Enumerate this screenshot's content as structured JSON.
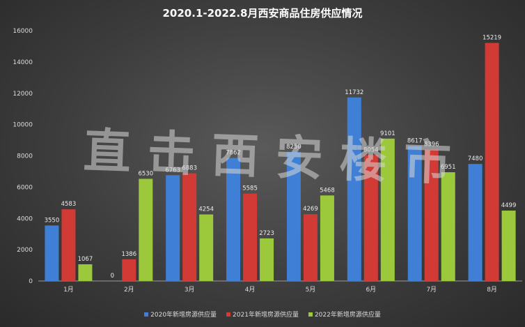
{
  "colors": {
    "s2020": "#3f7fd6",
    "s2021": "#d23a36",
    "s2022": "#9bc93b"
  },
  "watermark": "直击西安楼市",
  "chart_data": {
    "type": "bar",
    "title": "2020.1-2022.8月西安商品住房供应情况",
    "categories": [
      "1月",
      "2月",
      "3月",
      "4月",
      "5月",
      "6月",
      "7月",
      "8月"
    ],
    "series": [
      {
        "name": "2020年新增房源供应量",
        "values": [
          3550,
          0,
          6763,
          7862,
          8250,
          11732,
          8617,
          7480
        ]
      },
      {
        "name": "2021年新增房源供应量",
        "values": [
          4583,
          1386,
          6883,
          5585,
          4269,
          8054,
          8396,
          15219
        ]
      },
      {
        "name": "2022年新增房源供应量",
        "values": [
          1067,
          6530,
          4254,
          2723,
          5468,
          9101,
          6951,
          4499
        ]
      }
    ],
    "yticks": [
      "0",
      "2000",
      "4000",
      "6000",
      "8000",
      "10000",
      "12000",
      "14000",
      "16000"
    ],
    "ylim": [
      0,
      16000
    ],
    "grid": false,
    "legend": "bottom"
  }
}
